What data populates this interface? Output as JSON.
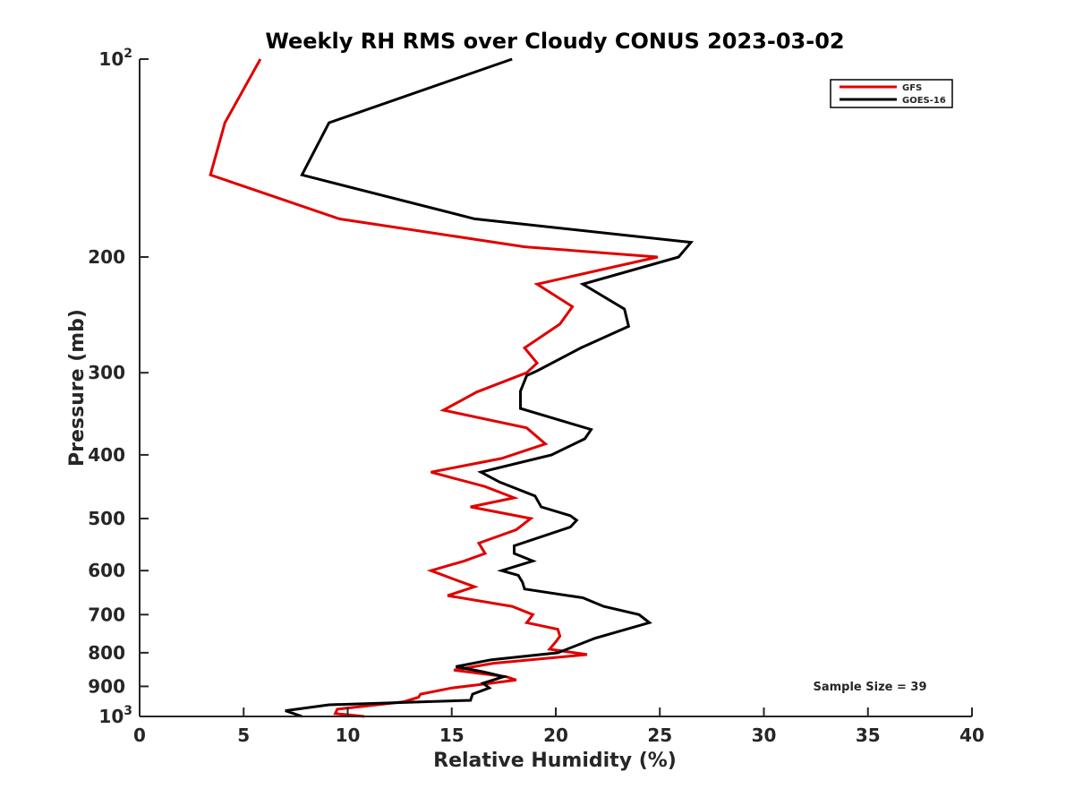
{
  "chart_data": {
    "type": "line",
    "title": "Weekly RH RMS over Cloudy CONUS 2023-03-02",
    "xlabel": "Relative Humidity (%)",
    "ylabel": "Pressure (mb)",
    "xlim": [
      0,
      40
    ],
    "ylim": [
      100,
      1000
    ],
    "y_scale": "log",
    "y_reversed": true,
    "grid": false,
    "legend_position": "top-right",
    "xticks": [
      "0",
      "5",
      "10",
      "15",
      "20",
      "25",
      "30",
      "35",
      "40"
    ],
    "yticks": [
      {
        "value": 100,
        "base": "10",
        "exp": "2"
      },
      {
        "value": 200,
        "label": "200"
      },
      {
        "value": 300,
        "label": "300"
      },
      {
        "value": 400,
        "label": "400"
      },
      {
        "value": 500,
        "label": "500"
      },
      {
        "value": 600,
        "label": "600"
      },
      {
        "value": 700,
        "label": "700"
      },
      {
        "value": 800,
        "label": "800"
      },
      {
        "value": 900,
        "label": "900"
      },
      {
        "value": 1000,
        "base": "10",
        "exp": "3"
      }
    ],
    "annotation": "Sample Size = 39",
    "series": [
      {
        "name": "GFS",
        "color": "#e00000",
        "points": [
          [
            5.8,
            100
          ],
          [
            4.1,
            125
          ],
          [
            3.4,
            150
          ],
          [
            9.6,
            175
          ],
          [
            18.5,
            193
          ],
          [
            24.9,
            200
          ],
          [
            19.1,
            220
          ],
          [
            20.8,
            238
          ],
          [
            20.2,
            253
          ],
          [
            18.5,
            275
          ],
          [
            19.1,
            290
          ],
          [
            18.6,
            300
          ],
          [
            16.2,
            321
          ],
          [
            14.6,
            342
          ],
          [
            18.6,
            364
          ],
          [
            19.5,
            385
          ],
          [
            17.4,
            405
          ],
          [
            14.0,
            425
          ],
          [
            16.6,
            447
          ],
          [
            18.0,
            465
          ],
          [
            15.9,
            480
          ],
          [
            18.8,
            500
          ],
          [
            18.1,
            520
          ],
          [
            16.3,
            545
          ],
          [
            16.6,
            565
          ],
          [
            15.6,
            580
          ],
          [
            14.0,
            600
          ],
          [
            15.2,
            620
          ],
          [
            16.1,
            635
          ],
          [
            14.8,
            655
          ],
          [
            17.9,
            680
          ],
          [
            18.9,
            700
          ],
          [
            18.6,
            720
          ],
          [
            20.1,
            737
          ],
          [
            20.2,
            755
          ],
          [
            20.0,
            770
          ],
          [
            19.7,
            790
          ],
          [
            21.5,
            805
          ],
          [
            17.0,
            830
          ],
          [
            15.1,
            850
          ],
          [
            17.6,
            870
          ],
          [
            18.1,
            880
          ],
          [
            16.9,
            890
          ],
          [
            15.0,
            905
          ],
          [
            13.5,
            925
          ],
          [
            13.4,
            935
          ],
          [
            12.7,
            950
          ],
          [
            9.5,
            975
          ],
          [
            9.4,
            990
          ],
          [
            10.8,
            1000
          ]
        ]
      },
      {
        "name": "GOES-16",
        "color": "#000000",
        "points": [
          [
            17.9,
            100
          ],
          [
            9.1,
            125
          ],
          [
            7.8,
            150
          ],
          [
            16.1,
            175
          ],
          [
            26.5,
            190
          ],
          [
            25.9,
            200
          ],
          [
            21.3,
            220
          ],
          [
            23.3,
            240
          ],
          [
            23.5,
            255
          ],
          [
            21.2,
            275
          ],
          [
            19.1,
            298
          ],
          [
            18.6,
            303
          ],
          [
            18.3,
            320
          ],
          [
            18.3,
            340
          ],
          [
            21.7,
            366
          ],
          [
            21.4,
            378
          ],
          [
            19.8,
            400
          ],
          [
            16.4,
            425
          ],
          [
            17.3,
            440
          ],
          [
            19.0,
            462
          ],
          [
            19.3,
            480
          ],
          [
            20.7,
            495
          ],
          [
            21.0,
            503
          ],
          [
            20.7,
            515
          ],
          [
            18.0,
            550
          ],
          [
            18.0,
            565
          ],
          [
            18.9,
            580
          ],
          [
            17.4,
            600
          ],
          [
            18.2,
            610
          ],
          [
            18.4,
            625
          ],
          [
            18.5,
            640
          ],
          [
            21.3,
            660
          ],
          [
            22.3,
            680
          ],
          [
            24.0,
            700
          ],
          [
            24.5,
            720
          ],
          [
            21.9,
            760
          ],
          [
            20.1,
            800
          ],
          [
            16.9,
            820
          ],
          [
            15.2,
            840
          ],
          [
            16.5,
            855
          ],
          [
            17.5,
            870
          ],
          [
            16.5,
            890
          ],
          [
            16.8,
            905
          ],
          [
            16.0,
            925
          ],
          [
            15.9,
            945
          ],
          [
            9.1,
            960
          ],
          [
            7.0,
            980
          ],
          [
            7.8,
            1000
          ]
        ]
      }
    ]
  }
}
